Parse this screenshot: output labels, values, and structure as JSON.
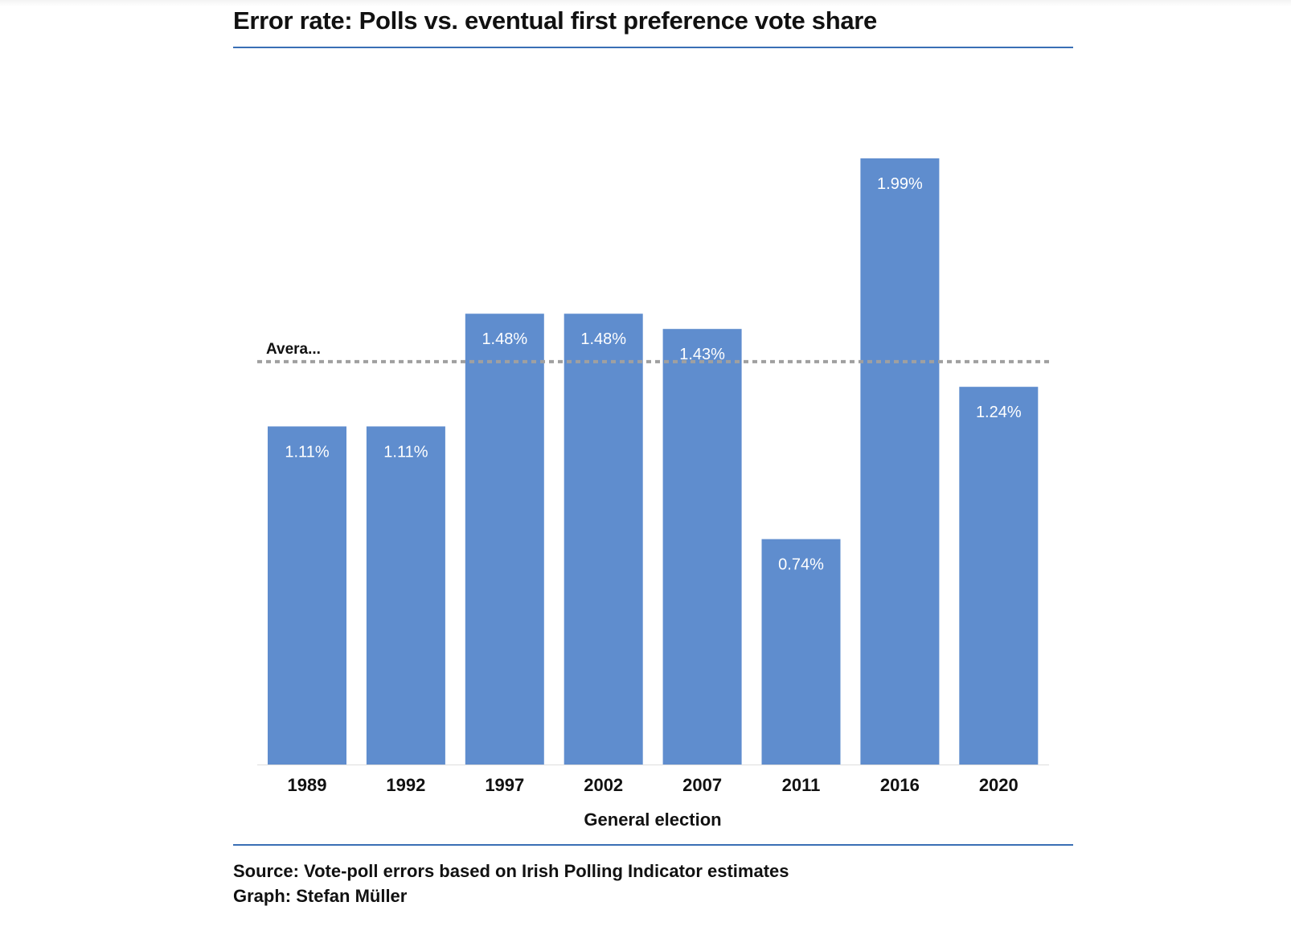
{
  "title": "Error rate: Polls vs. eventual first preference vote share",
  "footer": {
    "source": "Source: Vote-poll errors based on Irish Polling Indicator estimates",
    "graph": "Graph: Stefan Müller"
  },
  "chart_data": {
    "type": "bar",
    "title": "Error rate: Polls vs. eventual first preference vote share",
    "xlabel": "General election",
    "ylabel": "",
    "categories": [
      "1989",
      "1992",
      "1997",
      "2002",
      "2007",
      "2011",
      "2016",
      "2020"
    ],
    "values": [
      1.11,
      1.11,
      1.48,
      1.48,
      1.43,
      0.74,
      1.99,
      1.24
    ],
    "data_labels": [
      "1.11%",
      "1.11%",
      "1.48%",
      "1.48%",
      "1.43%",
      "0.74%",
      "1.99%",
      "1.24%"
    ],
    "ylim": [
      0,
      1.99
    ],
    "grid": false,
    "reference_line": {
      "label": "Avera...",
      "value": 1.3225,
      "style": "dotted"
    },
    "colors": {
      "bar": "#5f8dce",
      "reference_line": "#a0a0a0",
      "rule": "#3a6fb5"
    }
  }
}
